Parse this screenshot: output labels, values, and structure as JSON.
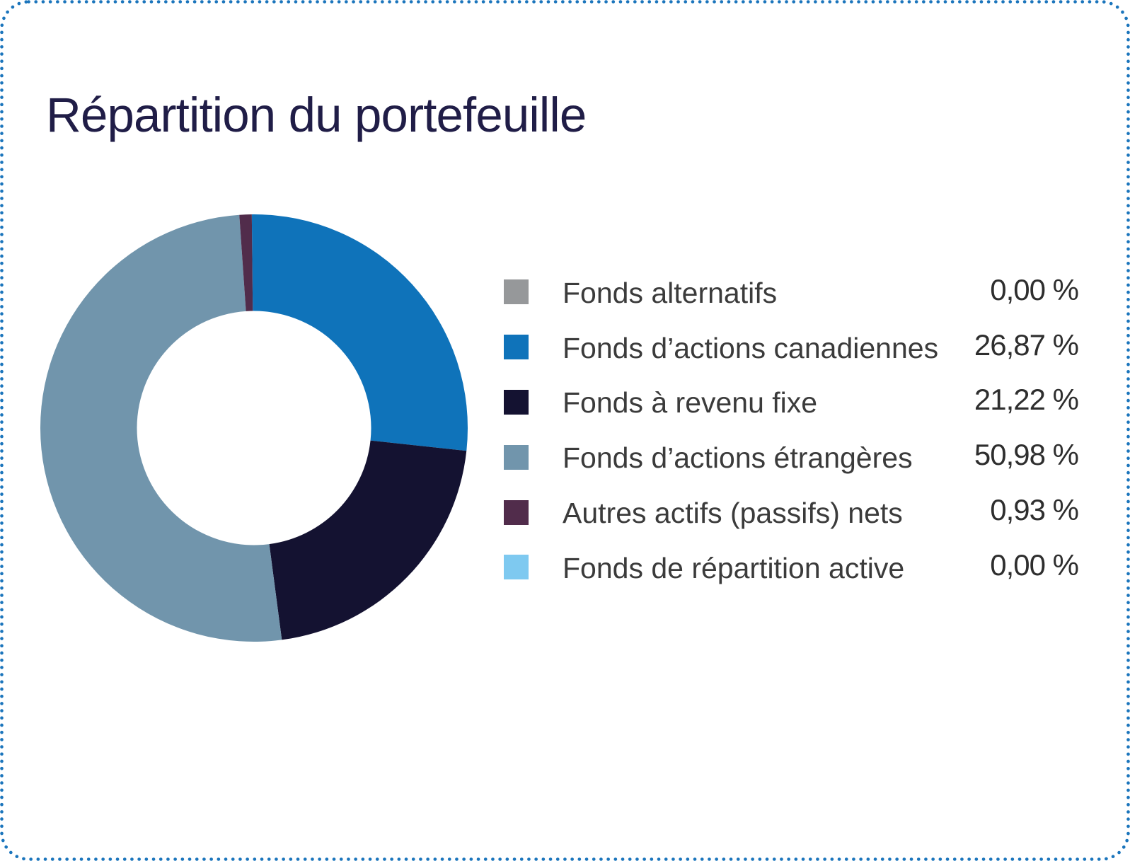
{
  "title": "Répartition du portefeuille",
  "colors": {
    "border": "#1B75BC",
    "title": "#201D47",
    "label": "#3B3B3B",
    "value": "#2E2E2E",
    "background": "#FFFFFF"
  },
  "chart_data": {
    "type": "pie",
    "subtype": "donut",
    "title": "Répartition du portefeuille",
    "start_angle_deg": -90.6,
    "direction": "clockwise",
    "legend_position": "right",
    "categories": [
      "Fonds alternatifs",
      "Fonds d’actions canadiennes",
      "Fonds à revenu fixe",
      "Fonds d’actions étrangères",
      "Autres actifs (passifs) nets",
      "Fonds de répartition active"
    ],
    "values": [
      0.0,
      26.87,
      21.22,
      50.98,
      0.93,
      0.0
    ],
    "value_labels": [
      "0,00 %",
      "26,87 %",
      "21,22 %",
      "50,98 %",
      "0,93 %",
      "0,00 %"
    ],
    "colors": [
      "#96989A",
      "#0F73BA",
      "#141231",
      "#7195AC",
      "#512C4B",
      "#7EC9F0"
    ]
  }
}
